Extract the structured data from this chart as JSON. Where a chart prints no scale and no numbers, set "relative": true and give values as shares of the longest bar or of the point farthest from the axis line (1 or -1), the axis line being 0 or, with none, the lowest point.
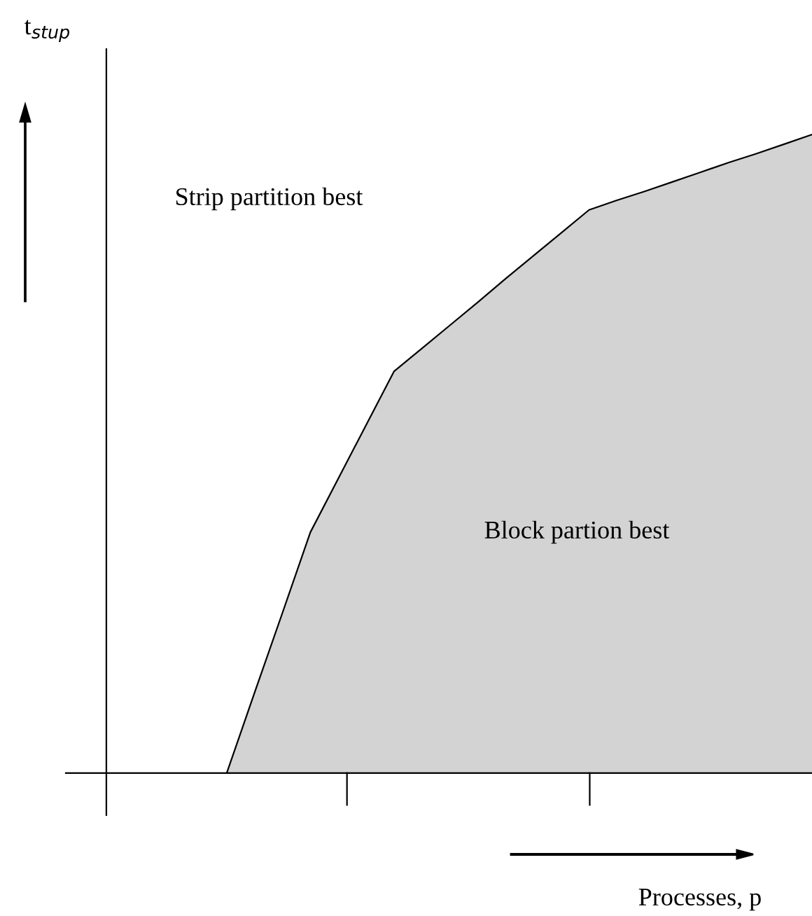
{
  "chart_data": {
    "type": "area",
    "relative": true,
    "categories": [
      null,
      null,
      null,
      null,
      null,
      null,
      null,
      null,
      null,
      null,
      null,
      null,
      null,
      null,
      null,
      null,
      null,
      null,
      null,
      null,
      null,
      null
    ],
    "values": [
      0,
      0.126,
      0.251,
      0.377,
      0.461,
      0.545,
      0.629,
      0.665,
      0.701,
      0.737,
      0.774,
      0.81,
      0.846,
      0.882,
      0.897,
      0.911,
      0.926,
      0.941,
      0.956,
      0.97,
      0.985,
      1
    ],
    "color": "#d3d3d3",
    "xlabel": "Processes, p",
    "annotations": [
      "Strip partition best",
      "Block partion best",
      "t$_{stup}$"
    ],
    "grid": false,
    "legend": false
  }
}
